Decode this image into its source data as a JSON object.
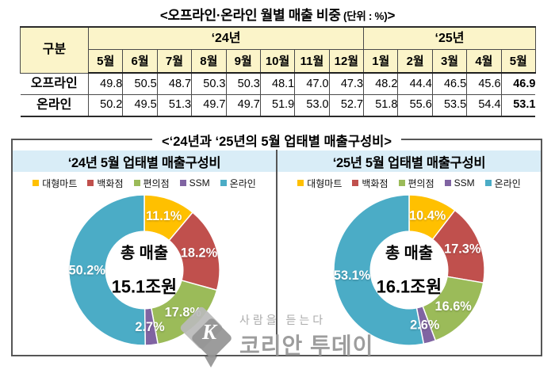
{
  "titles": {
    "table_main": "<오프라인·온라인 월별 매출 비중",
    "table_unit": " (단위 : %)",
    "table_close": ">",
    "box_title": "<‘24년과 ‘25년의 5월 업태별 매출구성비>"
  },
  "watermark": {
    "letter": "K",
    "tagline": "사람을 듣는다",
    "brand": "코리안 투데이"
  },
  "palette": {
    "header_yellow": "#FBF4C9",
    "panel_blue": "#D9EDF7",
    "table_border": "#4a4a4a",
    "box_border": "#565656"
  },
  "chart_data": [
    {
      "type": "table",
      "name": "offline-online-monthly-share",
      "title": "<오프라인·온라인 월별 매출 비중 (단위 : %)>",
      "unit": "%",
      "corner_label": "구분",
      "column_groups": [
        {
          "label": "‘24년",
          "columns": [
            "5월",
            "6월",
            "7월",
            "8월",
            "9월",
            "10월",
            "11월",
            "12월"
          ]
        },
        {
          "label": "‘25년",
          "columns": [
            "1월",
            "2월",
            "3월",
            "4월",
            "5월"
          ]
        }
      ],
      "rows": [
        {
          "label": "오프라인",
          "values": [
            "49.8",
            "50.5",
            "48.7",
            "50.3",
            "50.3",
            "48.1",
            "47.0",
            "47.3",
            "48.2",
            "44.4",
            "46.5",
            "45.6",
            "46.9"
          ]
        },
        {
          "label": "온라인",
          "values": [
            "50.2",
            "49.5",
            "51.3",
            "49.7",
            "49.7",
            "51.9",
            "53.0",
            "52.7",
            "51.8",
            "55.6",
            "53.5",
            "54.4",
            "53.1"
          ]
        }
      ],
      "bold_last_column": true
    },
    {
      "type": "pie",
      "donut": true,
      "title": "‘24년 5월 업태별 매출구성비",
      "categories": [
        "대형마트",
        "백화점",
        "편의점",
        "SSM",
        "온라인"
      ],
      "values": [
        11.1,
        18.2,
        17.8,
        2.7,
        50.2
      ],
      "colors": [
        "#FFC000",
        "#C0504D",
        "#9BBB59",
        "#8064A2",
        "#4BACC6"
      ],
      "center_label": [
        "총 매출",
        "15.1조원"
      ],
      "start_angle": "top",
      "direction": "clockwise",
      "legend_position": "top",
      "label_format": "percent"
    },
    {
      "type": "pie",
      "donut": true,
      "title": "‘25년 5월 업태별 매출구성비",
      "categories": [
        "대형마트",
        "백화점",
        "편의점",
        "SSM",
        "온라인"
      ],
      "values": [
        10.4,
        17.3,
        16.6,
        2.6,
        53.1
      ],
      "colors": [
        "#FFC000",
        "#C0504D",
        "#9BBB59",
        "#8064A2",
        "#4BACC6"
      ],
      "center_label": [
        "총 매출",
        "16.1조원"
      ],
      "start_angle": "top",
      "direction": "clockwise",
      "legend_position": "top",
      "label_format": "percent"
    }
  ]
}
